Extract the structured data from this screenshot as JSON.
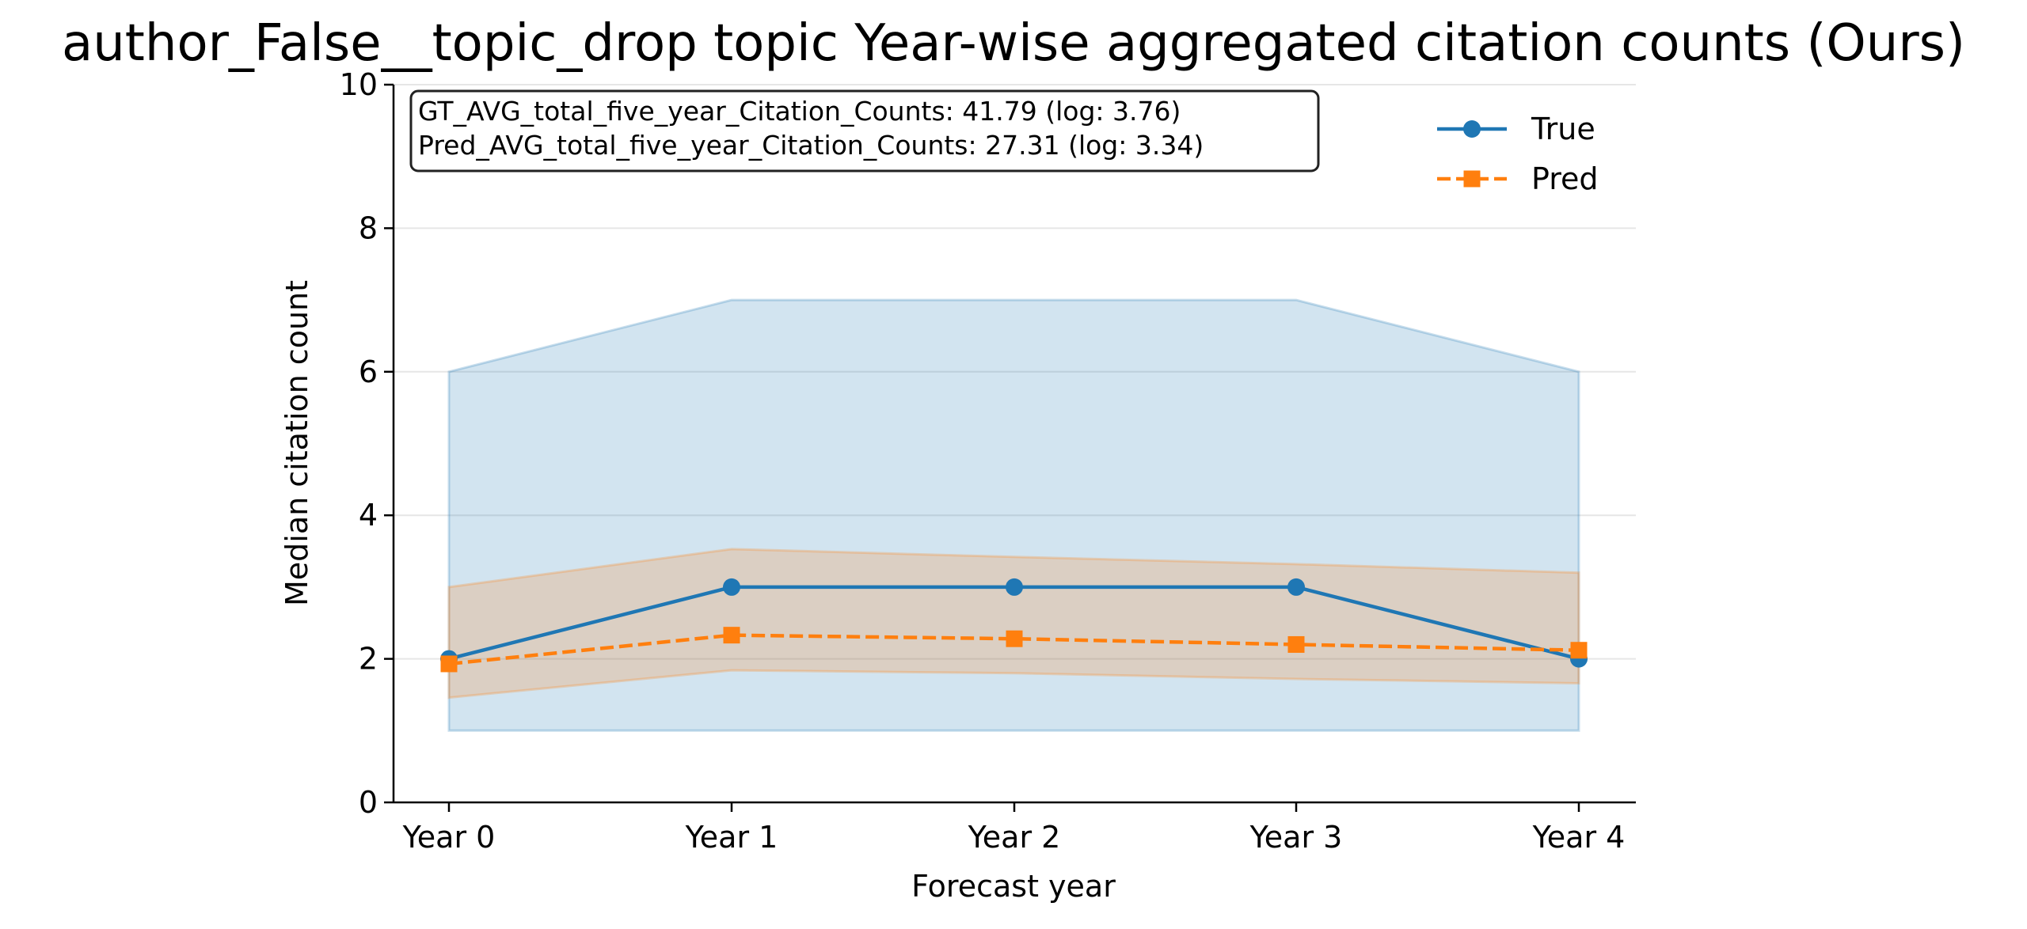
{
  "chart_data": {
    "type": "line",
    "title": "author_False__topic_drop topic Year-wise aggregated citation counts (Ours)",
    "xlabel": "Forecast year",
    "ylabel": "Median citation count",
    "categories": [
      "Year 0",
      "Year 1",
      "Year 2",
      "Year 3",
      "Year 4"
    ],
    "ylim": [
      0,
      10
    ],
    "yticks": [
      0,
      2,
      4,
      6,
      8,
      10
    ],
    "grid": "horizontal",
    "legend_position": "top-right",
    "annotation_lines": [
      "GT_AVG_total_five_year_Citation_Counts: 41.79 (log: 3.76)",
      "Pred_AVG_total_five_year_Citation_Counts: 27.31 (log: 3.34)"
    ],
    "series": [
      {
        "name": "True",
        "color": "#1f77b4",
        "marker": "circle",
        "linestyle": "solid",
        "values": [
          2,
          3,
          3,
          3,
          2
        ],
        "band_lower": [
          1,
          1,
          1,
          1,
          1
        ],
        "band_upper": [
          6,
          7,
          7,
          7,
          6
        ]
      },
      {
        "name": "Pred",
        "color": "#ff7f0e",
        "marker": "square",
        "linestyle": "dashed",
        "values": [
          1.93,
          2.33,
          2.28,
          2.2,
          2.12
        ],
        "band_lower": [
          1.46,
          1.84,
          1.8,
          1.72,
          1.66
        ],
        "band_upper": [
          3.0,
          3.53,
          3.42,
          3.32,
          3.2
        ]
      }
    ]
  }
}
